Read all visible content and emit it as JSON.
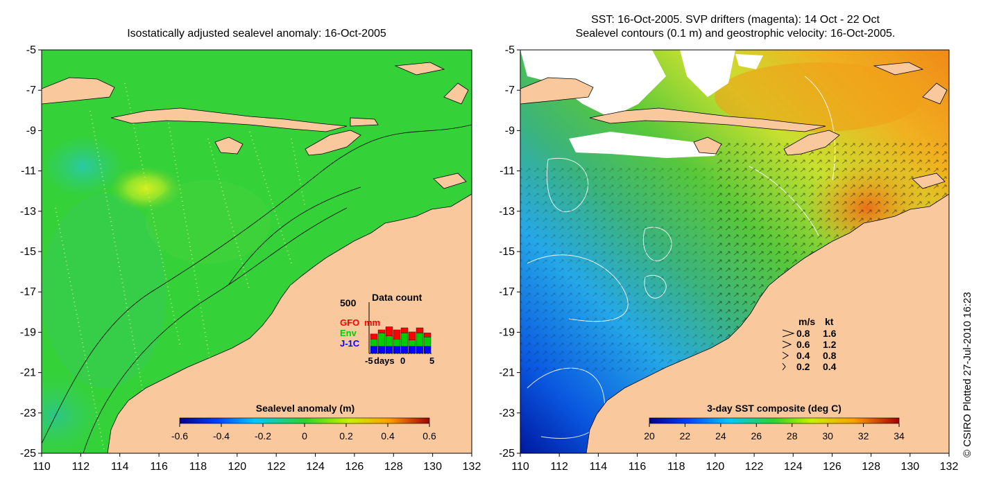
{
  "left_panel": {
    "title": "Isostatically adjusted sealevel anomaly: 16-Oct-2005",
    "y_ticks": [
      "-5",
      "-7",
      "-9",
      "-11",
      "-13",
      "-15",
      "-17",
      "-19",
      "-21",
      "-23",
      "-25"
    ],
    "x_ticks": [
      "110",
      "112",
      "114",
      "116",
      "118",
      "120",
      "122",
      "124",
      "126",
      "128",
      "130",
      "132"
    ],
    "colorbar": {
      "label": "Sealevel anomaly (m)",
      "ticks": [
        "-0.6",
        "-0.4",
        "-0.2",
        "0",
        "0.2",
        "0.4",
        "0.6"
      ]
    },
    "data_count": {
      "title": "Data count",
      "max_label": "500",
      "series": [
        {
          "name": "GFO",
          "color": "#ff0000"
        },
        {
          "name": "Env",
          "color": "#00cc00"
        },
        {
          "name": "J-1C",
          "color": "#0000ff"
        }
      ],
      "mm_label": "mm",
      "x_label_start": "-5",
      "x_label_days": "days",
      "x_label_zero": "0",
      "x_label_end": "5",
      "bars": [
        {
          "j1": 0.14,
          "env": 0.14,
          "gfo": 0.1
        },
        {
          "j1": 0.14,
          "env": 0.26,
          "gfo": 0.06
        },
        {
          "j1": 0.14,
          "env": 0.2,
          "gfo": 0.18
        },
        {
          "j1": 0.14,
          "env": 0.14,
          "gfo": 0.18
        },
        {
          "j1": 0.14,
          "env": 0.26,
          "gfo": 0.1
        },
        {
          "j1": 0.14,
          "env": 0.12,
          "gfo": 0.16
        },
        {
          "j1": 0.14,
          "env": 0.26,
          "gfo": 0.1
        },
        {
          "j1": 0.14,
          "env": 0.18,
          "gfo": 0.08
        }
      ]
    }
  },
  "right_panel": {
    "title_line1": "SST: 16-Oct-2005. SVP drifters (magenta): 14 Oct - 22 Oct",
    "title_line2": "Sealevel contours (0.1 m) and geostrophic velocity: 16-Oct-2005.",
    "y_ticks": [
      "-5",
      "-7",
      "-9",
      "-11",
      "-13",
      "-15",
      "-17",
      "-19",
      "-21",
      "-23",
      "-25"
    ],
    "x_ticks": [
      "110",
      "112",
      "114",
      "116",
      "118",
      "120",
      "122",
      "124",
      "126",
      "128",
      "130",
      "132"
    ],
    "colorbar": {
      "label": "3-day SST composite (deg C)",
      "ticks": [
        "20",
        "22",
        "24",
        "26",
        "28",
        "30",
        "32",
        "34"
      ]
    },
    "velocity_legend": {
      "header_ms": "m/s",
      "header_kt": "kt",
      "rows": [
        {
          "ms": "0.8",
          "kt": "1.6"
        },
        {
          "ms": "0.6",
          "kt": "1.2"
        },
        {
          "ms": "0.4",
          "kt": "0.8"
        },
        {
          "ms": "0.2",
          "kt": "0.4"
        }
      ]
    }
  },
  "copyright": "© CSIRO Plotted 27-Jul-2010 16:23",
  "colors": {
    "land": "#f9c89d",
    "ocean_green": "#2ed12b",
    "sst_warm": "#f2a118"
  }
}
